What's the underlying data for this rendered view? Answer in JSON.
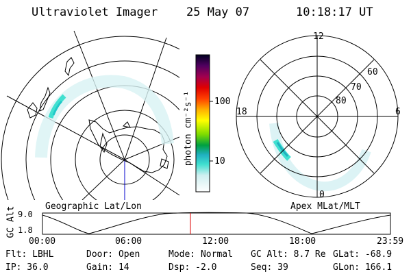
{
  "header": {
    "instrument": "Ultraviolet Imager",
    "date": "25 May 07",
    "time": "10:18:17 UT"
  },
  "left_panel": {
    "label": "Geographic Lat/Lon"
  },
  "right_panel": {
    "label": "Apex MLat/MLT",
    "mlt_labels": {
      "top": "12",
      "left": "18",
      "right": "6",
      "bottom": "0"
    },
    "lat_labels": [
      "60",
      "70",
      "80"
    ]
  },
  "colorbar": {
    "unit_label": "photon cm⁻²s⁻¹",
    "ticks": [
      "100",
      "10"
    ]
  },
  "altitude_plot": {
    "axis_label": "GC Alt",
    "y_ticks": [
      "9.0",
      "1.8"
    ],
    "x_ticks": [
      "00:00",
      "06:00",
      "12:00",
      "18:00",
      "23:59"
    ],
    "marker_color": "#dd0000"
  },
  "info": {
    "row1": {
      "filter": "Flt: LBHL",
      "door": "Door: Open",
      "mode": "Mode: Normal",
      "gc_alt": "GC Alt: 8.7 Re",
      "glat": "GLat: -68.9"
    },
    "row2": {
      "ip": "IP: 36.0",
      "gain": "Gain: 14",
      "dsp": "Dsp:   -2.0",
      "seq": "Seq: 39",
      "glon": "GLon: 166.1"
    }
  }
}
